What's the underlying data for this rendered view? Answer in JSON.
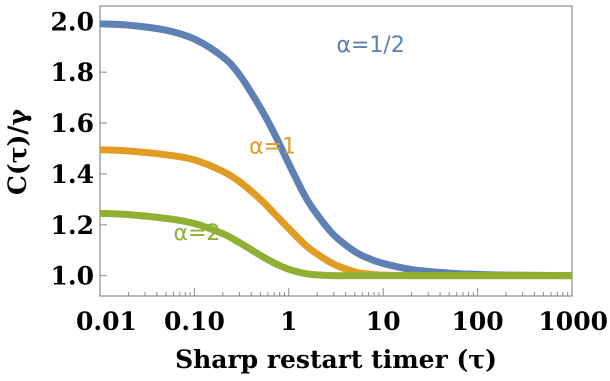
{
  "chart_data": {
    "type": "line",
    "title": "",
    "xlabel": "Sharp restart timer (τ)",
    "ylabel": "C(τ)/γ",
    "x_scale": "log",
    "xlim": [
      0.01,
      1000
    ],
    "ylim": [
      0.92,
      2.06
    ],
    "x_ticks": [
      {
        "value": 0.01,
        "label": "0.01"
      },
      {
        "value": 0.1,
        "label": "0.10"
      },
      {
        "value": 1,
        "label": "1"
      },
      {
        "value": 10,
        "label": "10"
      },
      {
        "value": 100,
        "label": "100"
      },
      {
        "value": 1000,
        "label": "1000"
      }
    ],
    "y_ticks": [
      {
        "value": 1.0,
        "label": "1.0"
      },
      {
        "value": 1.2,
        "label": "1.2"
      },
      {
        "value": 1.4,
        "label": "1.4"
      },
      {
        "value": 1.6,
        "label": "1.6"
      },
      {
        "value": 1.8,
        "label": "1.8"
      },
      {
        "value": 2.0,
        "label": "2.0"
      }
    ],
    "grid": false,
    "x": [
      0.01,
      0.02,
      0.05,
      0.1,
      0.2,
      0.3,
      0.5,
      0.7,
      1,
      1.5,
      2,
      3,
      5,
      7,
      10,
      20,
      50,
      100,
      200,
      500,
      1000
    ],
    "series": [
      {
        "name": "α=1/2",
        "color": "#5e81b5",
        "values": [
          1.99,
          1.985,
          1.965,
          1.93,
          1.86,
          1.79,
          1.66,
          1.56,
          1.44,
          1.31,
          1.24,
          1.16,
          1.095,
          1.068,
          1.048,
          1.024,
          1.01,
          1.005,
          1.002,
          1.001,
          1.0
        ]
      },
      {
        "name": "α=1",
        "color": "#e19c24",
        "values": [
          1.495,
          1.49,
          1.475,
          1.455,
          1.41,
          1.37,
          1.3,
          1.245,
          1.185,
          1.12,
          1.085,
          1.045,
          1.015,
          1.006,
          1.002,
          1.0,
          1.0,
          1.0,
          1.0,
          1.0,
          1.0
        ]
      },
      {
        "name": "α=2",
        "color": "#8fb032",
        "values": [
          1.245,
          1.24,
          1.225,
          1.205,
          1.165,
          1.13,
          1.08,
          1.05,
          1.025,
          1.008,
          1.003,
          1.0,
          1.0,
          1.0,
          1.0,
          1.0,
          1.0,
          1.0,
          1.0,
          1.0,
          1.0
        ]
      }
    ],
    "annotations": [
      {
        "text": "α=1/2",
        "series": 0,
        "x": 3.2,
        "y": 1.88
      },
      {
        "text": "α=1",
        "series": 1,
        "x": 0.38,
        "y": 1.48
      },
      {
        "text": "α=2",
        "series": 2,
        "x": 0.06,
        "y": 1.14
      }
    ]
  }
}
